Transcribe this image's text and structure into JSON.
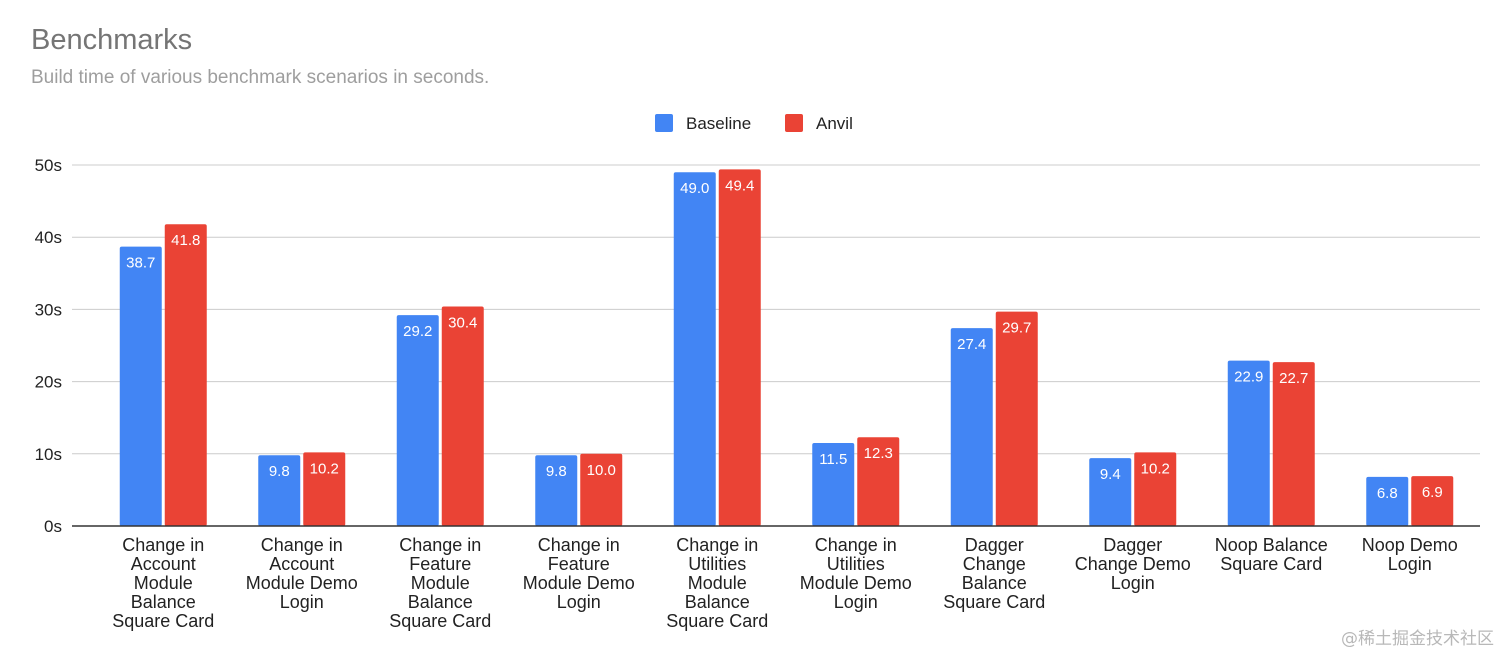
{
  "chart_data": {
    "type": "bar",
    "title": "Benchmarks",
    "subtitle": "Build time of various benchmark scenarios in seconds.",
    "categories": [
      [
        "Change in",
        "Account",
        "Module",
        "Balance",
        "Square Card"
      ],
      [
        "Change in",
        "Account",
        "Module Demo",
        "Login"
      ],
      [
        "Change in",
        "Feature",
        "Module",
        "Balance",
        "Square Card"
      ],
      [
        "Change in",
        "Feature",
        "Module Demo",
        "Login"
      ],
      [
        "Change in",
        "Utilities",
        "Module",
        "Balance",
        "Square Card"
      ],
      [
        "Change in",
        "Utilities",
        "Module Demo",
        "Login"
      ],
      [
        "Dagger",
        "Change",
        "Balance",
        "Square Card"
      ],
      [
        "Dagger",
        "Change Demo",
        "Login"
      ],
      [
        "Noop Balance",
        "Square Card"
      ],
      [
        "Noop Demo",
        "Login"
      ]
    ],
    "series": [
      {
        "name": "Baseline",
        "color": "#4285f4",
        "values": [
          38.7,
          9.8,
          29.2,
          9.8,
          49.0,
          11.5,
          27.4,
          9.4,
          22.9,
          6.8
        ]
      },
      {
        "name": "Anvil",
        "color": "#ea4335",
        "values": [
          41.8,
          10.2,
          30.4,
          10.0,
          49.4,
          12.3,
          29.7,
          10.2,
          22.7,
          6.9
        ]
      }
    ],
    "ylim": [
      0,
      50
    ],
    "yticks": [
      0,
      10,
      20,
      30,
      40,
      50
    ],
    "ytick_suffix": "s",
    "grid": true,
    "legend_position": "top-center",
    "data_labels": true
  },
  "watermark": "@稀土掘金技术社区"
}
